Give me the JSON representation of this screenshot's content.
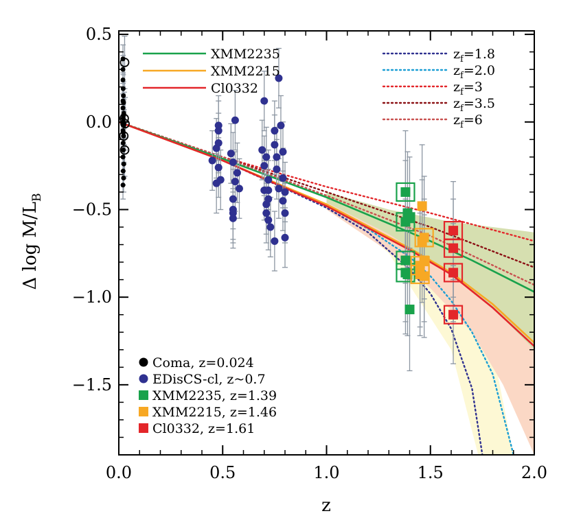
{
  "chart_data": {
    "type": "scatter",
    "xlabel": "z",
    "ylabel_main": "Δ log M/L",
    "ylabel_sub": "B",
    "xlim": [
      0.0,
      2.0
    ],
    "ylim": [
      -1.9,
      0.52
    ],
    "xticks": [
      0.0,
      0.5,
      1.0,
      1.5,
      2.0
    ],
    "xtick_labels": [
      "0.0",
      "0.5",
      "1.0",
      "1.5",
      "2.0"
    ],
    "yticks": [
      0.5,
      0.0,
      -0.5,
      -1.0,
      -1.5
    ],
    "ytick_labels": [
      "0.5",
      "0.0",
      "−0.5",
      "−1.0",
      "−1.5"
    ],
    "colors": {
      "XMM2235": "#19a24b",
      "XMM2215": "#f7a824",
      "Cl0332": "#e3262a",
      "EDisCS": "#2f3190",
      "Coma": "#000000",
      "error_bar": "#8c96a2",
      "band_green": "#d6dfb0",
      "band_orange": "#fbd8c5",
      "band_yellow": "#fdf8d4"
    },
    "model_lines": [
      {
        "name": "XMM2235",
        "color": "#19a24b",
        "points": [
          [
            0,
            0
          ],
          [
            0.5,
            -0.21
          ],
          [
            1.0,
            -0.43
          ],
          [
            1.5,
            -0.68
          ],
          [
            1.7,
            -0.79
          ],
          [
            2.0,
            -0.97
          ]
        ]
      },
      {
        "name": "XMM2215",
        "color": "#f7a824",
        "points": [
          [
            0,
            0
          ],
          [
            0.5,
            -0.22
          ],
          [
            1.0,
            -0.47
          ],
          [
            1.4,
            -0.72
          ],
          [
            1.6,
            -0.86
          ],
          [
            1.8,
            -1.04
          ],
          [
            2.0,
            -1.26
          ]
        ]
      },
      {
        "name": "Cl0332",
        "color": "#e3262a",
        "points": [
          [
            0,
            0
          ],
          [
            0.5,
            -0.22
          ],
          [
            1.0,
            -0.48
          ],
          [
            1.4,
            -0.73
          ],
          [
            1.6,
            -0.87
          ],
          [
            1.8,
            -1.06
          ],
          [
            2.0,
            -1.28
          ]
        ]
      }
    ],
    "bands": [
      {
        "fill": "#fdf8d4",
        "upper": [
          [
            1.0,
            -0.45
          ],
          [
            1.5,
            -0.8
          ],
          [
            1.8,
            -1.3
          ],
          [
            1.9,
            -1.9
          ]
        ],
        "lower": [
          [
            1.0,
            -0.45
          ],
          [
            1.3,
            -0.75
          ],
          [
            1.6,
            -1.3
          ],
          [
            1.73,
            -1.9
          ]
        ]
      },
      {
        "fill": "#fbd8c5",
        "upper": [
          [
            1.0,
            -0.44
          ],
          [
            1.3,
            -0.6
          ],
          [
            1.6,
            -0.75
          ],
          [
            1.8,
            -0.88
          ],
          [
            2.0,
            -1.05
          ]
        ],
        "lower": [
          [
            1.0,
            -0.5
          ],
          [
            1.3,
            -0.74
          ],
          [
            1.5,
            -0.95
          ],
          [
            1.7,
            -1.2
          ],
          [
            1.85,
            -1.5
          ],
          [
            2.0,
            -1.9
          ]
        ]
      },
      {
        "fill": "#d6dfb0",
        "upper": [
          [
            1.0,
            -0.4
          ],
          [
            1.3,
            -0.5
          ],
          [
            1.6,
            -0.57
          ],
          [
            1.8,
            -0.6
          ],
          [
            2.0,
            -0.63
          ]
        ],
        "lower": [
          [
            1.0,
            -0.46
          ],
          [
            1.3,
            -0.64
          ],
          [
            1.6,
            -0.87
          ],
          [
            1.8,
            -1.06
          ],
          [
            2.0,
            -1.3
          ]
        ]
      }
    ],
    "formation_tracks": [
      {
        "label": "z",
        "sub": "f",
        "value": "=1.8",
        "color": "#2f3190",
        "points": [
          [
            0,
            0
          ],
          [
            0.3,
            -0.13
          ],
          [
            0.5,
            -0.22
          ],
          [
            0.8,
            -0.38
          ],
          [
            1.0,
            -0.49
          ],
          [
            1.2,
            -0.63
          ],
          [
            1.4,
            -0.84
          ],
          [
            1.5,
            -0.98
          ],
          [
            1.6,
            -1.18
          ],
          [
            1.7,
            -1.52
          ],
          [
            1.75,
            -1.9
          ]
        ]
      },
      {
        "label": "z",
        "sub": "f",
        "value": "=2.0",
        "color": "#1a9ed4",
        "points": [
          [
            0,
            0
          ],
          [
            0.3,
            -0.13
          ],
          [
            0.5,
            -0.22
          ],
          [
            0.8,
            -0.37
          ],
          [
            1.0,
            -0.48
          ],
          [
            1.2,
            -0.61
          ],
          [
            1.4,
            -0.77
          ],
          [
            1.5,
            -0.88
          ],
          [
            1.6,
            -1.02
          ],
          [
            1.7,
            -1.2
          ],
          [
            1.8,
            -1.44
          ],
          [
            1.9,
            -1.9
          ]
        ]
      },
      {
        "label": "z",
        "sub": "f",
        "value": "=3",
        "color": "#e3262a",
        "points": [
          [
            0,
            0
          ],
          [
            0.5,
            -0.2
          ],
          [
            1.0,
            -0.37
          ],
          [
            1.5,
            -0.52
          ],
          [
            2.0,
            -0.68
          ]
        ]
      },
      {
        "label": "z",
        "sub": "f",
        "value": "=3.5",
        "color": "#8b1014",
        "points": [
          [
            0,
            0
          ],
          [
            0.5,
            -0.2
          ],
          [
            1.0,
            -0.4
          ],
          [
            1.5,
            -0.6
          ],
          [
            2.0,
            -0.83
          ]
        ]
      },
      {
        "label": "z",
        "sub": "f",
        "value": "=6",
        "color": "#c8504f",
        "points": [
          [
            0,
            0
          ],
          [
            0.5,
            -0.2
          ],
          [
            1.0,
            -0.42
          ],
          [
            1.5,
            -0.65
          ],
          [
            2.0,
            -0.93
          ]
        ]
      }
    ],
    "series": [
      {
        "name": "Coma, z=0.024",
        "color": "#000000",
        "marker": "dot",
        "points": [
          [
            0.02,
            0.36
          ],
          [
            0.02,
            0.3
          ],
          [
            0.02,
            0.24
          ],
          [
            0.021,
            0.19
          ],
          [
            0.022,
            0.15
          ],
          [
            0.023,
            0.11
          ],
          [
            0.02,
            0.08
          ],
          [
            0.024,
            0.05
          ],
          [
            0.021,
            0.02
          ],
          [
            0.022,
            0.0
          ],
          [
            0.024,
            -0.02
          ],
          [
            0.02,
            -0.05
          ],
          [
            0.023,
            -0.08
          ],
          [
            0.021,
            -0.12
          ],
          [
            0.022,
            -0.16
          ],
          [
            0.02,
            -0.2
          ],
          [
            0.024,
            -0.24
          ],
          [
            0.021,
            -0.28
          ],
          [
            0.023,
            -0.32
          ],
          [
            0.02,
            -0.36
          ],
          [
            0.022,
            -0.06
          ],
          [
            0.023,
            0.04
          ],
          [
            0.025,
            -0.01
          ],
          [
            0.02,
            0.12
          ]
        ],
        "err": 0.08
      },
      {
        "name": "Coma-open",
        "color": "#000000",
        "marker": "ring",
        "points": [
          [
            0.028,
            0.34
          ],
          [
            0.026,
            0.02
          ],
          [
            0.03,
            -0.01
          ],
          [
            0.024,
            -0.08
          ],
          [
            0.028,
            -0.16
          ]
        ],
        "err": 0.15
      },
      {
        "name": "EDisCS-cl, z~0.7",
        "color": "#2f3190",
        "marker": "dot",
        "points": [
          [
            0.45,
            -0.22
          ],
          [
            0.47,
            -0.35
          ],
          [
            0.48,
            -0.02
          ],
          [
            0.48,
            -0.05
          ],
          [
            0.48,
            -0.12
          ],
          [
            0.47,
            -0.15
          ],
          [
            0.48,
            -0.26
          ],
          [
            0.49,
            -0.33
          ],
          [
            0.54,
            -0.18
          ],
          [
            0.55,
            -0.23
          ],
          [
            0.55,
            -0.44
          ],
          [
            0.55,
            -0.5
          ],
          [
            0.55,
            -0.52
          ],
          [
            0.56,
            -0.34
          ],
          [
            0.57,
            -0.29
          ],
          [
            0.56,
            0.01
          ],
          [
            0.58,
            -0.38
          ],
          [
            0.55,
            -0.55
          ],
          [
            0.69,
            -0.16
          ],
          [
            0.7,
            -0.25
          ],
          [
            0.7,
            -0.39
          ],
          [
            0.7,
            0.12
          ],
          [
            0.71,
            -0.47
          ],
          [
            0.72,
            -0.39
          ],
          [
            0.71,
            -0.2
          ],
          [
            0.72,
            -0.33
          ],
          [
            0.72,
            -0.44
          ],
          [
            0.71,
            -0.52
          ],
          [
            0.72,
            -0.56
          ],
          [
            0.73,
            -0.6
          ],
          [
            0.75,
            -0.05
          ],
          [
            0.75,
            -0.13
          ],
          [
            0.76,
            -0.2
          ],
          [
            0.76,
            -0.27
          ],
          [
            0.77,
            -0.38
          ],
          [
            0.75,
            -0.68
          ],
          [
            0.77,
            0.25
          ],
          [
            0.78,
            -0.02
          ],
          [
            0.79,
            -0.17
          ],
          [
            0.79,
            -0.32
          ],
          [
            0.8,
            -0.52
          ],
          [
            0.8,
            -0.66
          ],
          [
            0.79,
            -0.45
          ],
          [
            0.8,
            -0.4
          ]
        ],
        "err": 0.17
      },
      {
        "name": "XMM2235, z=1.39",
        "color": "#19a24b",
        "marker": "square",
        "points": [
          [
            1.38,
            -0.4
          ],
          [
            1.38,
            -0.57
          ],
          [
            1.38,
            -0.79
          ],
          [
            1.38,
            -0.86
          ],
          [
            1.39,
            -0.52
          ],
          [
            1.39,
            -0.87
          ],
          [
            1.4,
            -0.55
          ],
          [
            1.4,
            -1.07
          ]
        ],
        "boxed": [
          [
            1.38,
            -0.4
          ],
          [
            1.38,
            -0.57
          ],
          [
            1.38,
            -0.79
          ],
          [
            1.38,
            -0.86
          ]
        ],
        "err": 0.35
      },
      {
        "name": "XMM2215, z=1.46",
        "color": "#f7a824",
        "marker": "square",
        "points": [
          [
            1.45,
            -0.82
          ],
          [
            1.45,
            -0.87
          ],
          [
            1.46,
            -0.48
          ],
          [
            1.46,
            -0.68
          ],
          [
            1.47,
            -0.66
          ],
          [
            1.47,
            -0.79
          ],
          [
            1.47,
            -0.88
          ]
        ],
        "boxed": [
          [
            1.45,
            -0.82
          ],
          [
            1.45,
            -0.87
          ],
          [
            1.47,
            -0.66
          ]
        ],
        "err": 0.35
      },
      {
        "name": "Cl0332, z=1.61",
        "color": "#e3262a",
        "marker": "square",
        "points": [
          [
            1.61,
            -0.62
          ],
          [
            1.61,
            -0.72
          ],
          [
            1.61,
            -0.86
          ],
          [
            1.61,
            -1.1
          ]
        ],
        "boxed": [
          [
            1.61,
            -0.62
          ],
          [
            1.61,
            -0.72
          ],
          [
            1.61,
            -0.86
          ],
          [
            1.61,
            -1.1
          ]
        ],
        "err": 0.28
      }
    ],
    "legend_top_left": [
      {
        "label": "XMM2235",
        "color": "#19a24b"
      },
      {
        "label": "XMM2215",
        "color": "#f7a824"
      },
      {
        "label": "Cl0332",
        "color": "#e3262a"
      }
    ],
    "legend_bottom_left": [
      {
        "label": "Coma, z=0.024",
        "color": "#000000",
        "marker": "dot"
      },
      {
        "label": "EDisCS-cl, z~0.7",
        "color": "#2f3190",
        "marker": "dot"
      },
      {
        "label": "XMM2235, z=1.39",
        "color": "#19a24b",
        "marker": "square"
      },
      {
        "label": "XMM2215, z=1.46",
        "color": "#f7a824",
        "marker": "square"
      },
      {
        "label": "Cl0332, z=1.61",
        "color": "#e3262a",
        "marker": "square"
      }
    ]
  }
}
